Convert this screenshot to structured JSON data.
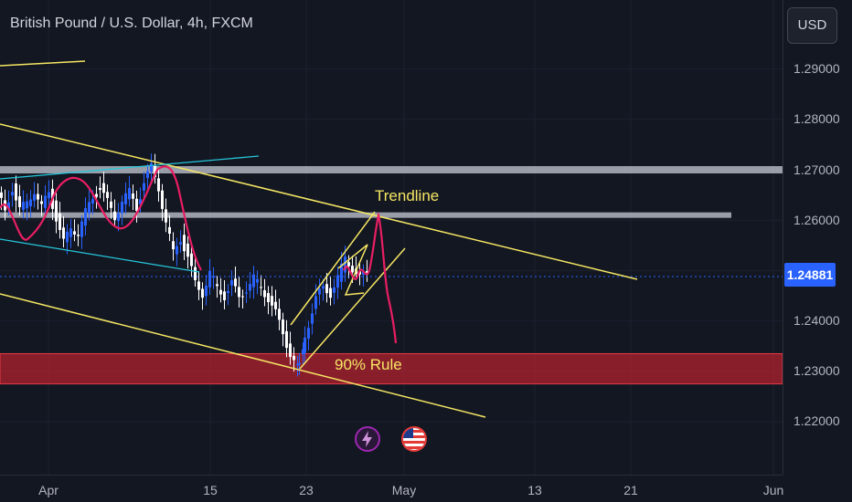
{
  "header": {
    "symbol_title": "British Pound / U.S. Dollar, 4h, FXCM",
    "currency_button": "USD"
  },
  "price_axis": {
    "labels": [
      "1.29000",
      "1.28000",
      "1.27000",
      "1.26000",
      "1.25000",
      "1.24000",
      "1.23000",
      "1.22000"
    ],
    "current_price": "1.24881"
  },
  "time_axis": {
    "labels": [
      "Apr",
      "15",
      "23",
      "May",
      "13",
      "21",
      "Jun"
    ]
  },
  "annotations": {
    "trendline_label": "Trendline",
    "rule_label": "90% Rule"
  },
  "colors": {
    "background": "#131722",
    "bull_candle": "#2962ff",
    "bear_candle": "#ffffff",
    "trendline": "#f5e663",
    "support_zone": "#b2222f",
    "resistance": "#b2b5be",
    "projection_curve": "#e91e63",
    "cyan_line": "#26c6da",
    "current_price": "#2962ff"
  },
  "icons": {
    "event_1": "lightning-icon",
    "event_2": "us-flag-icon"
  },
  "chart_data": {
    "type": "candlestick",
    "symbol": "British Pound / U.S. Dollar",
    "interval": "4h",
    "source": "FXCM",
    "ylim": [
      1.215,
      1.295
    ],
    "yticks": [
      1.29,
      1.28,
      1.27,
      1.26,
      1.25,
      1.24,
      1.23,
      1.22
    ],
    "xticks": [
      "Apr",
      "15",
      "23",
      "May",
      "13",
      "21",
      "Jun"
    ],
    "current_price": 1.24881,
    "resistance_levels": [
      1.27,
      1.261
    ],
    "support_zone": [
      1.2275,
      1.2335
    ],
    "price_path": [
      [
        0,
        1.2655
      ],
      [
        8,
        1.2615
      ],
      [
        16,
        1.2665
      ],
      [
        24,
        1.262
      ],
      [
        32,
        1.2635
      ],
      [
        40,
        1.266
      ],
      [
        48,
        1.2625
      ],
      [
        56,
        1.2655
      ],
      [
        64,
        1.2605
      ],
      [
        72,
        1.2555
      ],
      [
        80,
        1.2585
      ],
      [
        88,
        1.2575
      ],
      [
        96,
        1.2615
      ],
      [
        104,
        1.2645
      ],
      [
        112,
        1.2665
      ],
      [
        120,
        1.2635
      ],
      [
        128,
        1.2605
      ],
      [
        136,
        1.264
      ],
      [
        144,
        1.2655
      ],
      [
        152,
        1.2625
      ],
      [
        160,
        1.2675
      ],
      [
        168,
        1.2705
      ],
      [
        176,
        1.2665
      ],
      [
        184,
        1.2595
      ],
      [
        192,
        1.2535
      ],
      [
        200,
        1.2565
      ],
      [
        208,
        1.2525
      ],
      [
        216,
        1.2475
      ],
      [
        224,
        1.2455
      ],
      [
        232,
        1.2495
      ],
      [
        240,
        1.2465
      ],
      [
        248,
        1.245
      ],
      [
        256,
        1.2475
      ],
      [
        264,
        1.2445
      ],
      [
        272,
        1.2465
      ],
      [
        280,
        1.2485
      ],
      [
        288,
        1.2465
      ],
      [
        296,
        1.2445
      ],
      [
        304,
        1.2415
      ],
      [
        312,
        1.2375
      ],
      [
        320,
        1.2335
      ],
      [
        326,
        1.2305
      ],
      [
        332,
        1.2345
      ],
      [
        340,
        1.2395
      ],
      [
        348,
        1.2445
      ],
      [
        356,
        1.2465
      ],
      [
        364,
        1.2455
      ],
      [
        372,
        1.2485
      ],
      [
        380,
        1.2525
      ],
      [
        388,
        1.2505
      ],
      [
        396,
        1.2485
      ],
      [
        404,
        1.2495
      ]
    ]
  }
}
